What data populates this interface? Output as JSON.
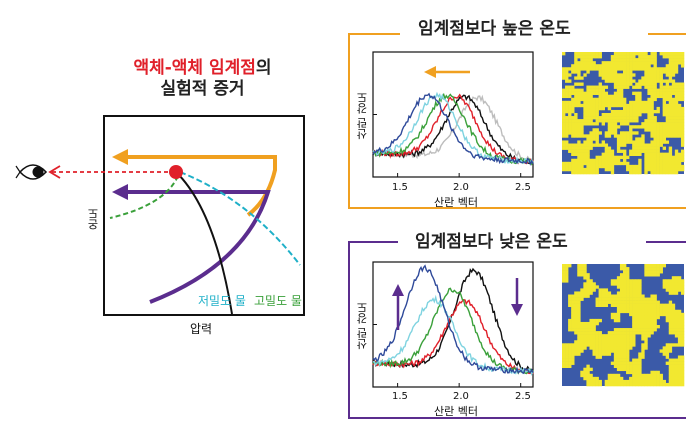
{
  "left": {
    "title_red": "액체-액체 임계점",
    "title_suffix": "의",
    "title_line2": "실험적 증거",
    "y_axis": "온도",
    "x_axis": "압력",
    "low_density": "저밀도 물",
    "high_density": "고밀도 물"
  },
  "top_panel": {
    "title": "임계점보다 높은 온도",
    "ylabel": "산란 강도",
    "xlabel": "산란 벡터",
    "ticks": [
      "1.5",
      "2.0",
      "2.5"
    ]
  },
  "bottom_panel": {
    "title": "임계점보다 낮은 온도",
    "ylabel": "산란 강도",
    "xlabel": "산란 벡터",
    "ticks": [
      "1.5",
      "2.0",
      "2.5"
    ]
  },
  "colors": {
    "orange": "#f0a020",
    "purple": "#5b2d8e",
    "red": "#e0202a",
    "green": "#3aa03a",
    "cyan": "#1fb0c8",
    "navy": "#3b5aa8",
    "yellow": "#f2e830"
  },
  "chart_data": [
    {
      "type": "line",
      "title": "임계점보다 높은 온도",
      "xlabel": "산란 벡터",
      "ylabel": "산란 강도",
      "xlim": [
        1.3,
        2.6
      ],
      "series": [
        {
          "name": "gray",
          "peak_x": 2.15
        },
        {
          "name": "black",
          "peak_x": 2.05
        },
        {
          "name": "red",
          "peak_x": 1.98
        },
        {
          "name": "green",
          "peak_x": 1.9
        },
        {
          "name": "cyan",
          "peak_x": 1.82
        },
        {
          "name": "navy",
          "peak_x": 1.75
        }
      ]
    },
    {
      "type": "line",
      "title": "임계점보다 낮은 온도",
      "xlabel": "산란 벡터",
      "ylabel": "산란 강도",
      "xlim": [
        1.3,
        2.6
      ],
      "series": [
        {
          "name": "black",
          "peak_x": 2.12
        },
        {
          "name": "red",
          "peak_x": 2.05
        },
        {
          "name": "green",
          "peak_x": 1.95
        },
        {
          "name": "cyan",
          "peak_x": 1.8
        },
        {
          "name": "navy",
          "peak_x": 1.72
        }
      ]
    }
  ]
}
